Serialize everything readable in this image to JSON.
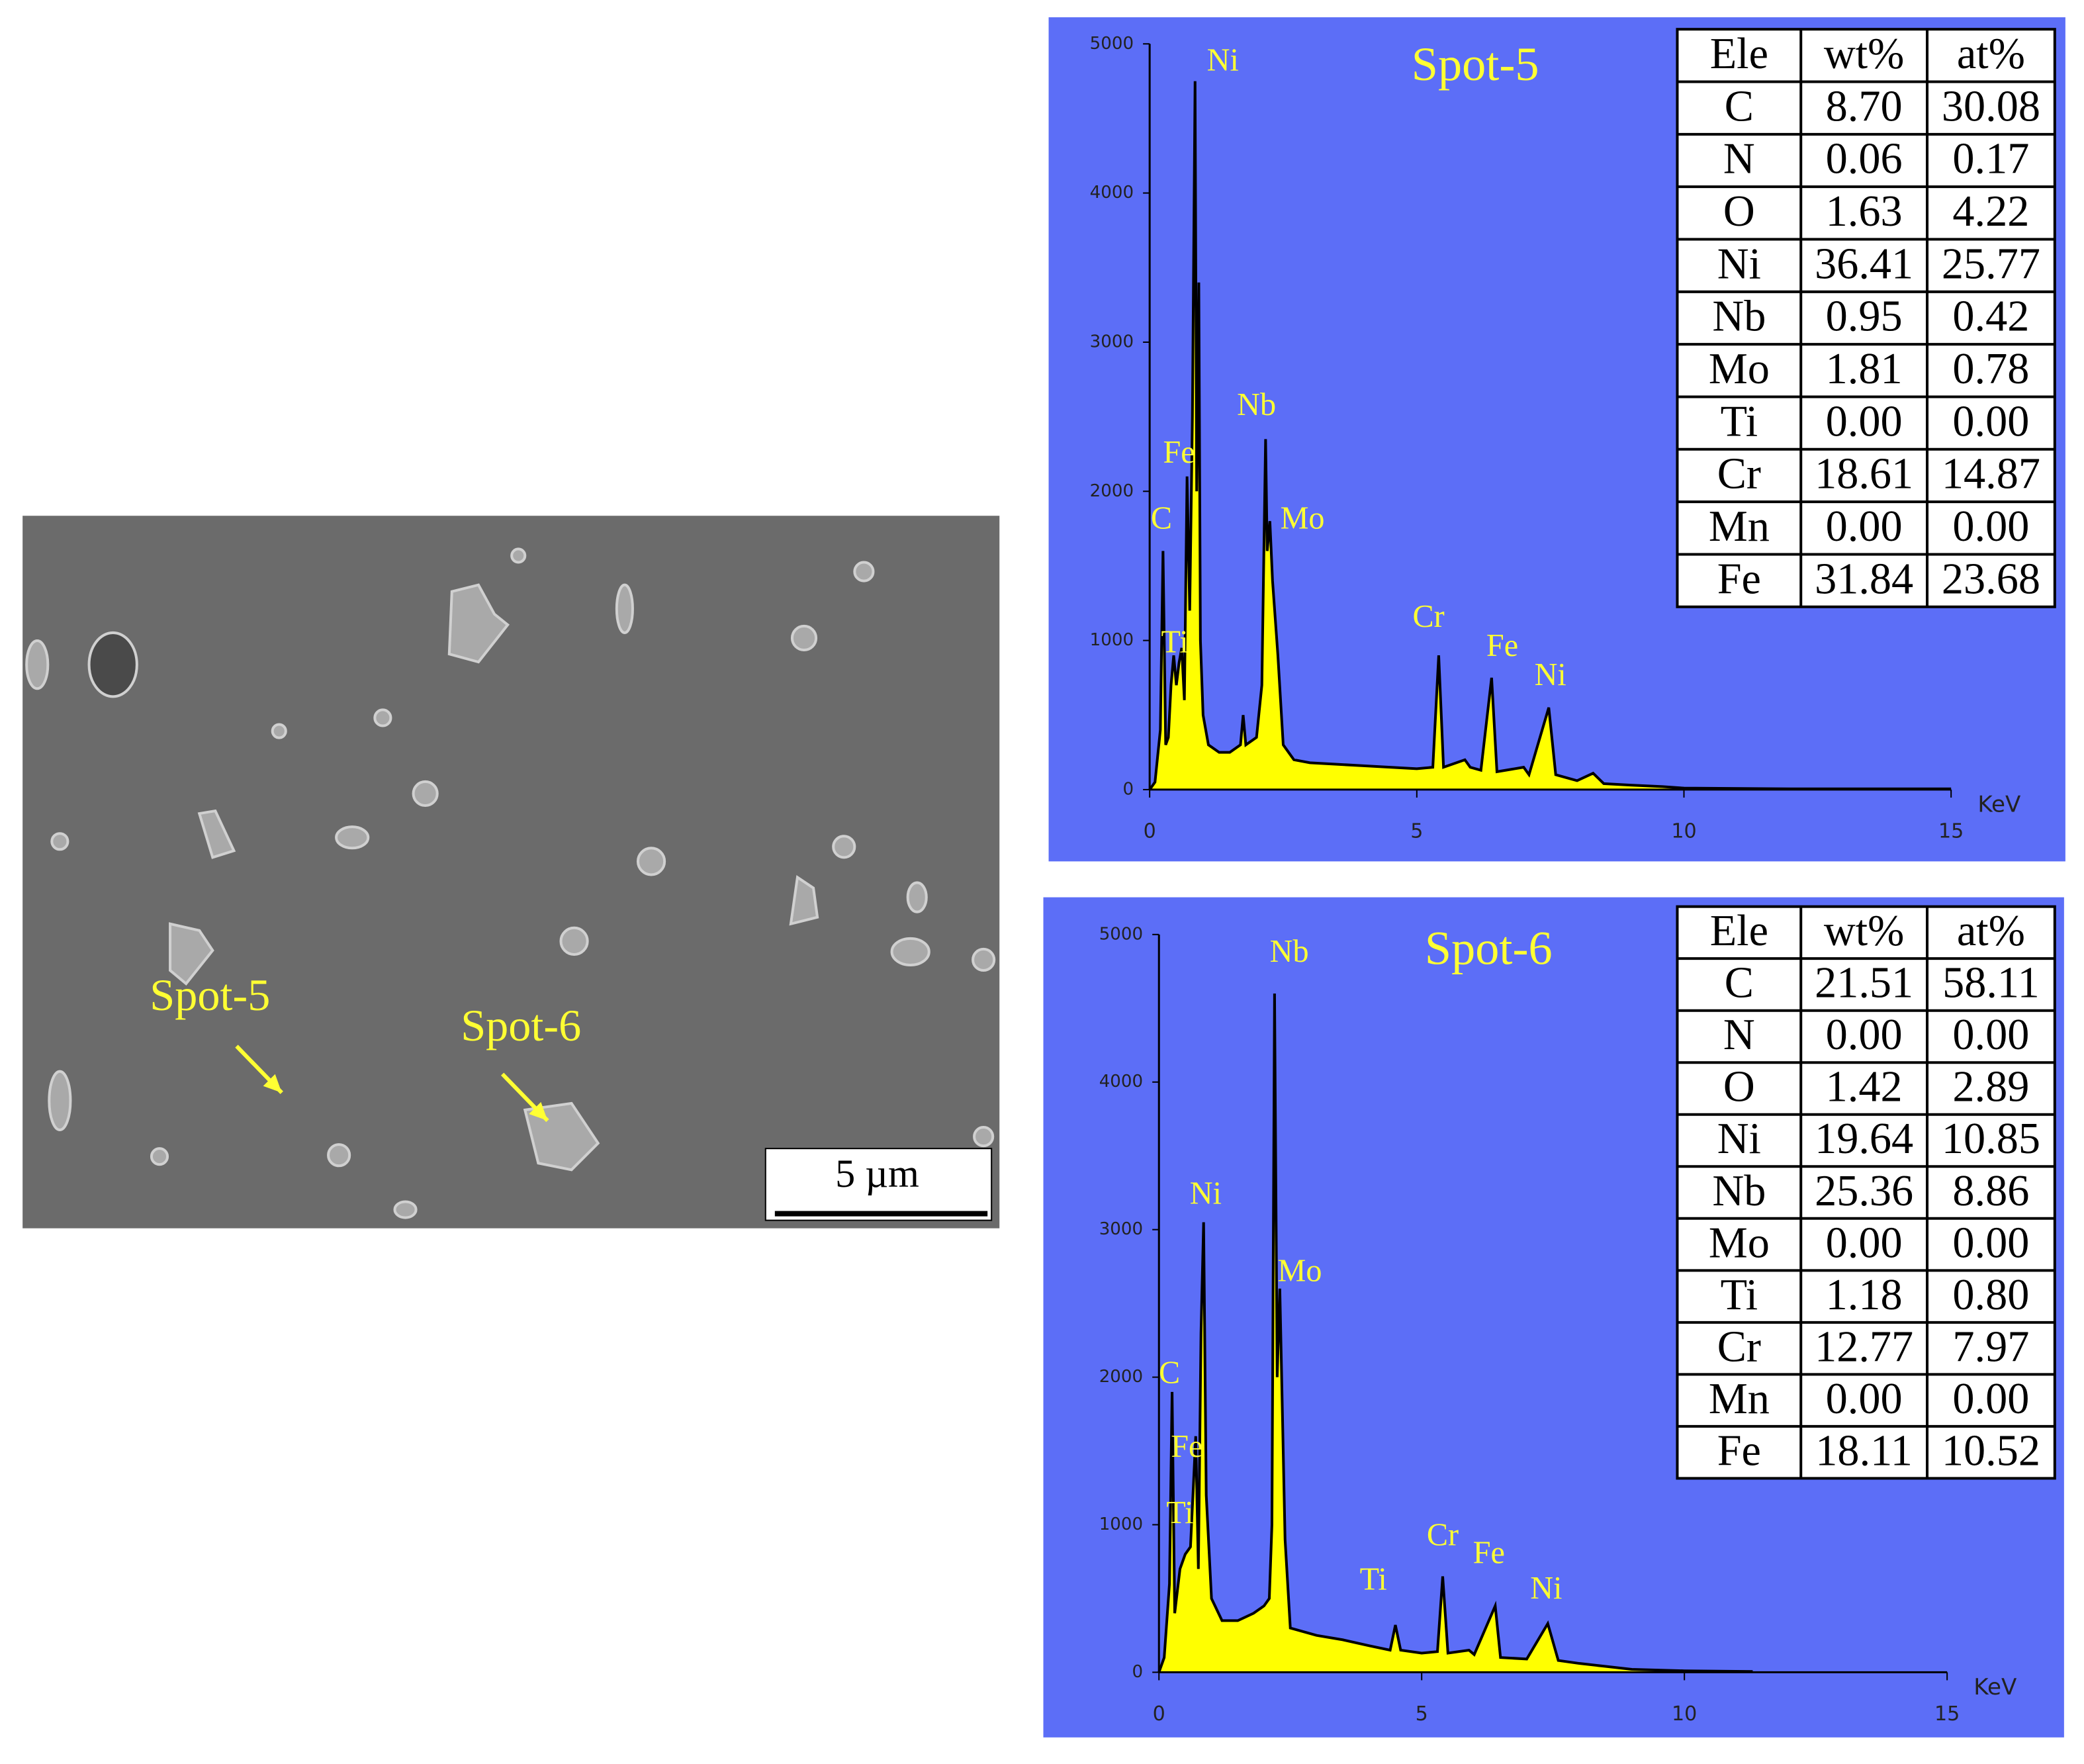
{
  "sem_image": {
    "labels": [
      "Spot-5",
      "Spot-6"
    ],
    "scale_bar": "5 µm"
  },
  "chart_data": [
    {
      "type": "area",
      "title": "Spot-5",
      "xlabel": "KeV",
      "color": "#ffff00",
      "line_color": "#000000",
      "background": "#5c6ef7",
      "xlim": [
        0,
        15
      ],
      "xticks": [
        0,
        5,
        10,
        15
      ],
      "ylim": [
        0,
        5000
      ],
      "yticks": [
        0,
        1000,
        2000,
        3000,
        4000,
        5000
      ],
      "x": [
        0,
        0.1,
        0.2,
        0.25,
        0.3,
        0.35,
        0.4,
        0.45,
        0.5,
        0.55,
        0.6,
        0.65,
        0.7,
        0.75,
        0.8,
        0.85,
        0.88,
        0.92,
        0.95,
        1.0,
        1.1,
        1.3,
        1.5,
        1.7,
        1.75,
        1.8,
        2.0,
        2.1,
        2.17,
        2.2,
        2.25,
        2.3,
        2.4,
        2.5,
        2.7,
        3.0,
        3.5,
        4.0,
        4.5,
        5.0,
        5.3,
        5.41,
        5.5,
        5.9,
        6.0,
        6.2,
        6.4,
        6.5,
        7.0,
        7.1,
        7.47,
        7.6,
        8.0,
        8.3,
        8.5,
        9.0,
        9.6,
        10.0,
        12,
        15
      ],
      "values": [
        0,
        50,
        400,
        1600,
        300,
        350,
        700,
        900,
        700,
        850,
        950,
        600,
        2100,
        1200,
        2500,
        4750,
        2000,
        3400,
        1000,
        500,
        300,
        250,
        250,
        300,
        500,
        300,
        350,
        700,
        2350,
        1600,
        1800,
        1400,
        900,
        300,
        200,
        180,
        170,
        160,
        150,
        140,
        150,
        900,
        150,
        200,
        150,
        130,
        750,
        120,
        150,
        100,
        550,
        100,
        60,
        110,
        40,
        30,
        20,
        10,
        5,
        5
      ],
      "annotations": [
        {
          "text": "Ni",
          "x": 1.37,
          "y": 4870
        },
        {
          "text": "Fe",
          "x": 0.55,
          "y": 2240
        },
        {
          "text": "C",
          "x": 0.22,
          "y": 1800
        },
        {
          "text": "Ti",
          "x": 0.47,
          "y": 970
        },
        {
          "text": "Nb",
          "x": 2.0,
          "y": 2560
        },
        {
          "text": "Mo",
          "x": 2.86,
          "y": 1800
        },
        {
          "text": "Cr",
          "x": 5.22,
          "y": 1140
        },
        {
          "text": "Fe",
          "x": 6.6,
          "y": 945
        },
        {
          "text": "Ni",
          "x": 7.5,
          "y": 750
        }
      ],
      "table": {
        "columns": [
          "Ele",
          "wt%",
          "at%"
        ],
        "rows": [
          [
            "C",
            "8.70",
            "30.08"
          ],
          [
            "N",
            "0.06",
            "0.17"
          ],
          [
            "O",
            "1.63",
            "4.22"
          ],
          [
            "Ni",
            "36.41",
            "25.77"
          ],
          [
            "Nb",
            "0.95",
            "0.42"
          ],
          [
            "Mo",
            "1.81",
            "0.78"
          ],
          [
            "Ti",
            "0.00",
            "0.00"
          ],
          [
            "Cr",
            "18.61",
            "14.87"
          ],
          [
            "Mn",
            "0.00",
            "0.00"
          ],
          [
            "Fe",
            "31.84",
            "23.68"
          ]
        ]
      }
    },
    {
      "type": "area",
      "title": "Spot-6",
      "xlabel": "KeV",
      "color": "#ffff00",
      "line_color": "#000000",
      "background": "#5c6ef7",
      "xlim": [
        0,
        15
      ],
      "xticks": [
        0,
        5,
        10,
        15
      ],
      "ylim": [
        0,
        5000
      ],
      "yticks": [
        0,
        1000,
        2000,
        3000,
        4000,
        5000
      ],
      "x": [
        0,
        0.1,
        0.2,
        0.25,
        0.3,
        0.4,
        0.5,
        0.6,
        0.7,
        0.75,
        0.8,
        0.85,
        0.9,
        1.0,
        1.2,
        1.5,
        1.8,
        2.0,
        2.1,
        2.15,
        2.2,
        2.25,
        2.3,
        2.4,
        2.5,
        3.0,
        3.5,
        4.0,
        4.4,
        4.5,
        4.6,
        5.0,
        5.3,
        5.4,
        5.5,
        5.9,
        6.0,
        6.4,
        6.5,
        7.0,
        7.4,
        7.6,
        8.0,
        8.5,
        9,
        10,
        11.3
      ],
      "values": [
        0,
        100,
        600,
        1900,
        400,
        700,
        800,
        850,
        1600,
        700,
        2300,
        3050,
        1200,
        500,
        350,
        350,
        400,
        450,
        500,
        1000,
        4600,
        2000,
        2600,
        900,
        300,
        250,
        220,
        180,
        150,
        320,
        150,
        130,
        140,
        650,
        130,
        150,
        120,
        450,
        100,
        90,
        330,
        80,
        60,
        40,
        20,
        10,
        5
      ],
      "annotations": [
        {
          "text": "Nb",
          "x": 2.48,
          "y": 4865
        },
        {
          "text": "Ni",
          "x": 0.89,
          "y": 3225
        },
        {
          "text": "Mo",
          "x": 2.68,
          "y": 2700
        },
        {
          "text": "C",
          "x": 0.2,
          "y": 2010
        },
        {
          "text": "Fe",
          "x": 0.53,
          "y": 1510
        },
        {
          "text": "Ti",
          "x": 0.4,
          "y": 1060
        },
        {
          "text": "Ti",
          "x": 4.08,
          "y": 610
        },
        {
          "text": "Cr",
          "x": 5.4,
          "y": 910
        },
        {
          "text": "Fe",
          "x": 6.28,
          "y": 790
        },
        {
          "text": "Ni",
          "x": 7.37,
          "y": 550
        }
      ],
      "table": {
        "columns": [
          "Ele",
          "wt%",
          "at%"
        ],
        "rows": [
          [
            "C",
            "21.51",
            "58.11"
          ],
          [
            "N",
            "0.00",
            "0.00"
          ],
          [
            "O",
            "1.42",
            "2.89"
          ],
          [
            "Ni",
            "19.64",
            "10.85"
          ],
          [
            "Nb",
            "25.36",
            "8.86"
          ],
          [
            "Mo",
            "0.00",
            "0.00"
          ],
          [
            "Ti",
            "1.18",
            "0.80"
          ],
          [
            "Cr",
            "12.77",
            "7.97"
          ],
          [
            "Mn",
            "0.00",
            "0.00"
          ],
          [
            "Fe",
            "18.11",
            "10.52"
          ]
        ]
      }
    }
  ]
}
